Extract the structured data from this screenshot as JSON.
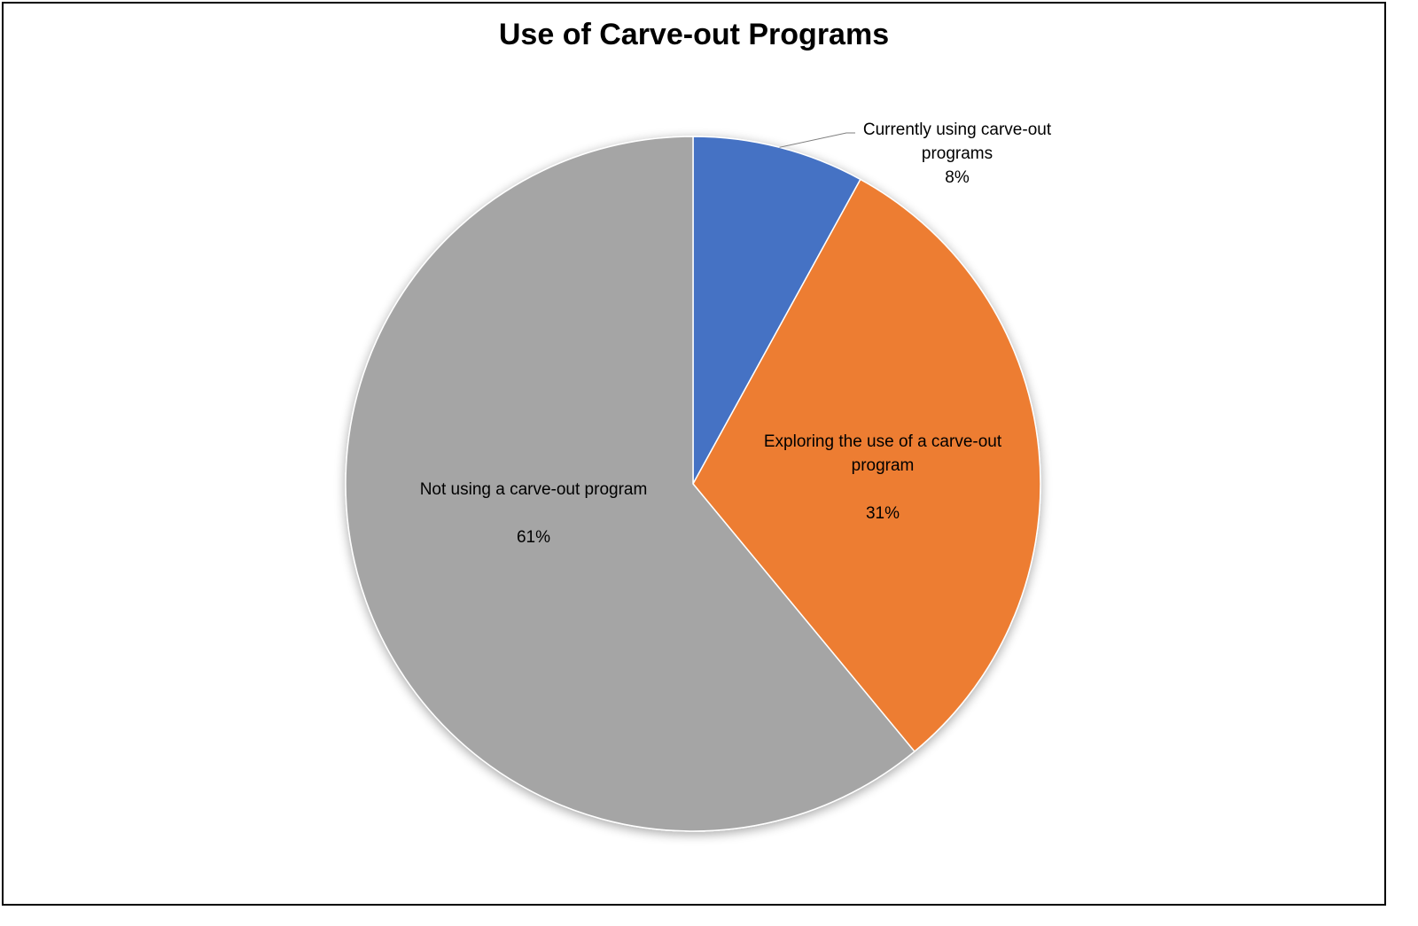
{
  "chart_data": {
    "type": "pie",
    "title": "Use of Carve-out Programs",
    "start_angle_deg": 0,
    "direction": "clockwise",
    "slices": [
      {
        "label_lines": [
          "Currently using carve-out",
          "programs"
        ],
        "label": "Currently using carve-out programs",
        "value": 8,
        "value_label": "8%",
        "color": "#4472C4"
      },
      {
        "label_lines": [
          "Exploring the use of a carve-out",
          "program"
        ],
        "label": "Exploring the use of a carve-out program",
        "value": 31,
        "value_label": "31%",
        "color": "#ED7D31"
      },
      {
        "label_lines": [
          "Not using a carve-out program"
        ],
        "label": "Not using a carve-out program",
        "value": 61,
        "value_label": "61%",
        "color": "#A5A5A5"
      }
    ],
    "legend": "none"
  }
}
